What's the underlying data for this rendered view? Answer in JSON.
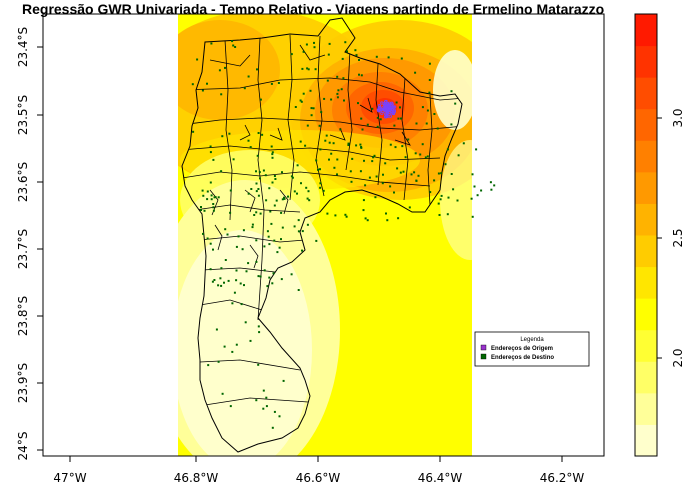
{
  "title": "Regressão GWR Univariada - Tempo Relativo - Viagens partindo de Ermelino Matarazzo",
  "x_axis": {
    "ticks": [
      "47°W",
      "46.8°W",
      "46.6°W",
      "46.4°W",
      "46.2°W"
    ]
  },
  "y_axis": {
    "ticks": [
      "23.4°S",
      "23.5°S",
      "23.6°S",
      "23.7°S",
      "23.8°S",
      "23.9°S",
      "24°S"
    ]
  },
  "colorbar": {
    "ticks": [
      "2.0",
      "2.5",
      "3.0"
    ],
    "colors": [
      "#FFFFCC",
      "#FFFF99",
      "#FFFF66",
      "#FFFF33",
      "#FFFF00",
      "#FFE600",
      "#FFCC00",
      "#FFB300",
      "#FF9900",
      "#FF8000",
      "#FF6600",
      "#FF4D00",
      "#FF3300",
      "#FF1A00"
    ]
  },
  "legend": {
    "title": "Legenda",
    "items": [
      {
        "label": "Endereços de Origem",
        "color": "#9933CC"
      },
      {
        "label": "Endereços de Destino",
        "color": "#006600"
      }
    ]
  },
  "colors": {
    "origin_points": "#7744FF",
    "destination_points": "#006600",
    "district_lines": "#000000"
  }
}
